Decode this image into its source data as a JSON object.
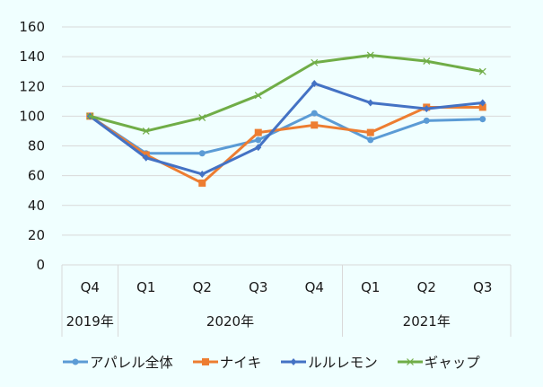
{
  "chart_data": {
    "type": "line",
    "title": "",
    "xlabel": "",
    "ylabel": "",
    "ylim": [
      0,
      160
    ],
    "yticks": [
      0,
      20,
      40,
      60,
      80,
      100,
      120,
      140,
      160
    ],
    "grid": true,
    "legend_position": "bottom",
    "categories": [
      "Q4",
      "Q1",
      "Q2",
      "Q3",
      "Q4",
      "Q1",
      "Q2",
      "Q3"
    ],
    "category_groups": [
      {
        "label": "2019年",
        "count": 1
      },
      {
        "label": "2020年",
        "count": 4
      },
      {
        "label": "2021年",
        "count": 3
      }
    ],
    "series": [
      {
        "name": "アパレル全体",
        "color": "#5b9bd5",
        "marker": "circle",
        "values": [
          100,
          75,
          75,
          84,
          102,
          84,
          97,
          98
        ]
      },
      {
        "name": "ナイキ",
        "color": "#ed7d31",
        "marker": "square",
        "values": [
          100,
          74,
          55,
          89,
          94,
          89,
          106,
          106
        ]
      },
      {
        "name": "ルルレモン",
        "color": "#4472c4",
        "marker": "diamond",
        "values": [
          100,
          72,
          61,
          79,
          122,
          109,
          105,
          109
        ]
      },
      {
        "name": "ギャップ",
        "color": "#70ad47",
        "marker": "x",
        "values": [
          100,
          90,
          99,
          114,
          136,
          141,
          137,
          130
        ]
      }
    ]
  },
  "legend": {
    "items": [
      {
        "label": "アパレル全体"
      },
      {
        "label": "ナイキ"
      },
      {
        "label": "ルルレモン"
      },
      {
        "label": "ギャップ"
      }
    ]
  }
}
